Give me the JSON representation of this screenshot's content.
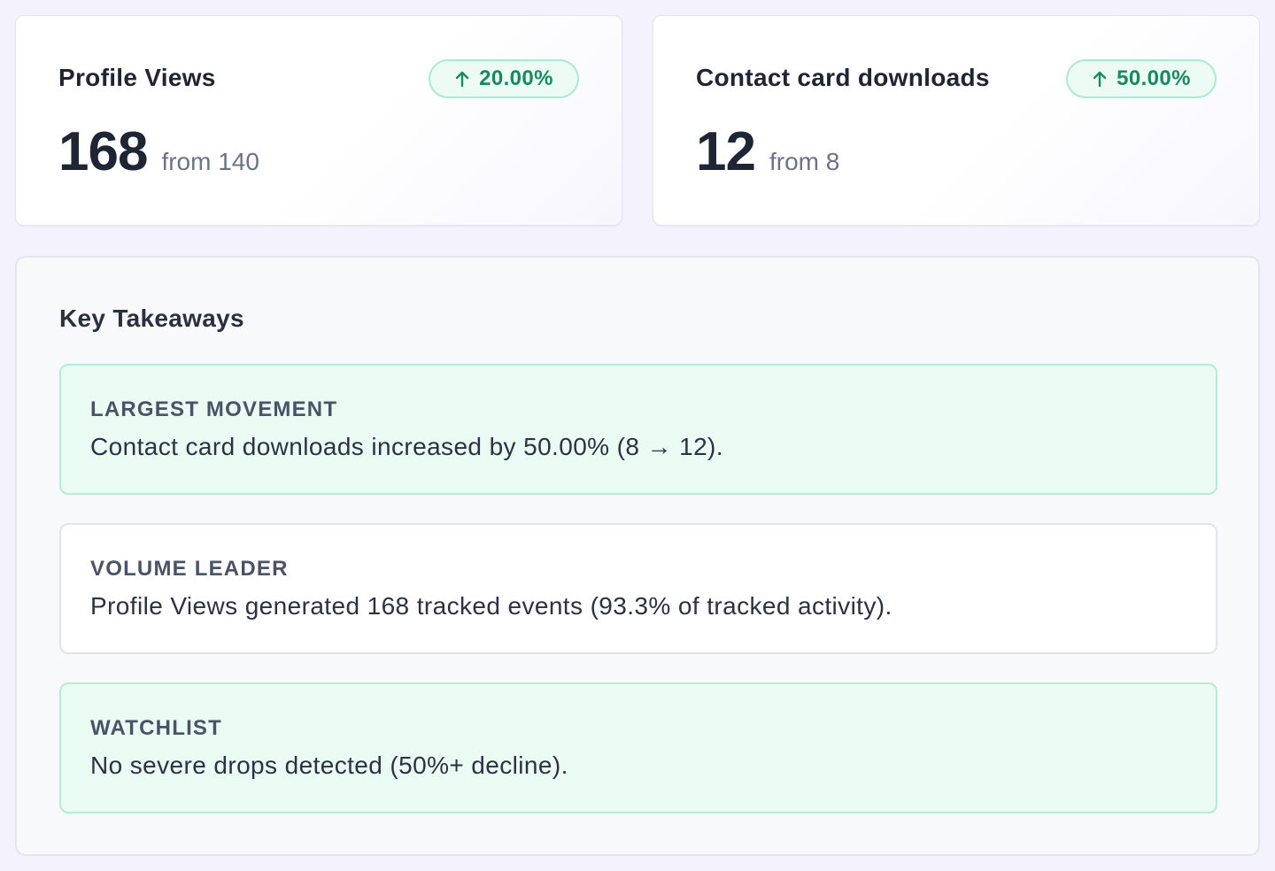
{
  "metrics": [
    {
      "title": "Profile Views",
      "change": "20.00%",
      "change_direction": "up",
      "value": "168",
      "from": "from 140"
    },
    {
      "title": "Contact card downloads",
      "change": "50.00%",
      "change_direction": "up",
      "value": "12",
      "from": "from 8"
    }
  ],
  "takeaways": {
    "title": "Key Takeaways",
    "items": [
      {
        "label": "LARGEST MOVEMENT",
        "text": "Contact card downloads increased by 50.00% (8 → 12).",
        "tone": "positive"
      },
      {
        "label": "VOLUME LEADER",
        "text": "Profile Views generated 168 tracked events (93.3% of tracked activity).",
        "tone": "neutral"
      },
      {
        "label": "WATCHLIST",
        "text": "No severe drops detected (50%+ decline).",
        "tone": "positive"
      }
    ]
  },
  "colors": {
    "page_background": "#f4f3fd",
    "positive_text": "#178a5e",
    "positive_border": "#a8ebd0",
    "positive_fill": "#ecfbf4"
  },
  "icons": {
    "badge_icon": "arrow-up-icon"
  }
}
